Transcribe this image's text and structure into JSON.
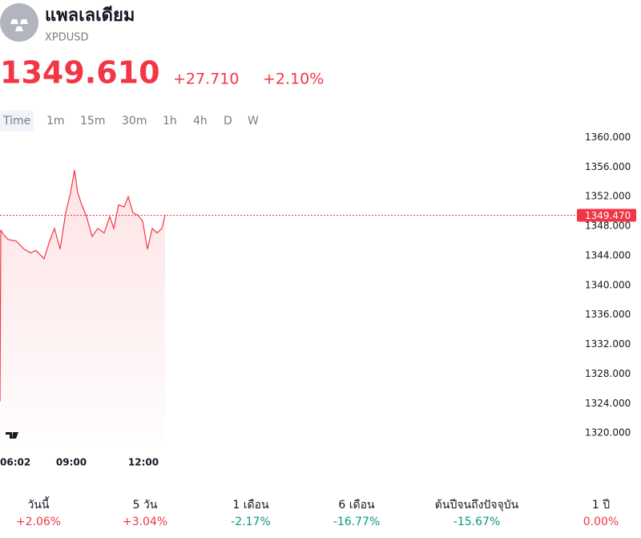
{
  "header": {
    "name": "แพลเลเดียม",
    "symbol": "XPDUSD",
    "price": "1349.610",
    "change": "+27.710",
    "change_pct": "+2.10%"
  },
  "timeframes": [
    "Time",
    "1m",
    "15m",
    "30m",
    "1h",
    "4h",
    "D",
    "W"
  ],
  "chart_data": {
    "type": "line",
    "color": "#f23645",
    "grid": false,
    "x": [
      "06:02",
      "06:04",
      "06:10",
      "06:22",
      "06:42",
      "07:02",
      "07:18",
      "07:32",
      "07:52",
      "08:06",
      "08:18",
      "08:32",
      "08:46",
      "08:58",
      "09:08",
      "09:16",
      "09:26",
      "09:38",
      "09:52",
      "10:06",
      "10:22",
      "10:36",
      "10:46",
      "10:58",
      "11:12",
      "11:22",
      "11:34",
      "11:46",
      "11:58",
      "12:10",
      "12:22",
      "12:34",
      "12:46",
      "12:54"
    ],
    "values": [
      1324.3,
      1347.5,
      1346.9,
      1346.2,
      1346.0,
      1344.9,
      1344.4,
      1344.7,
      1343.6,
      1346.0,
      1347.7,
      1344.9,
      1349.8,
      1352.5,
      1355.6,
      1352.5,
      1350.9,
      1349.3,
      1346.6,
      1347.7,
      1347.1,
      1349.3,
      1347.7,
      1350.9,
      1350.6,
      1352.0,
      1349.8,
      1349.5,
      1348.7,
      1344.9,
      1347.7,
      1347.1,
      1347.7,
      1349.47
    ],
    "xticks": [
      "06:02",
      "09:00",
      "12:00"
    ],
    "ylim": [
      1318.4,
      1360.7
    ],
    "yticks": [
      {
        "value": 1320,
        "label": "1320.000"
      },
      {
        "value": 1324,
        "label": "1324.000"
      },
      {
        "value": 1328,
        "label": "1328.000"
      },
      {
        "value": 1332,
        "label": "1332.000"
      },
      {
        "value": 1336,
        "label": "1336.000"
      },
      {
        "value": 1340,
        "label": "1340.000"
      },
      {
        "value": 1344,
        "label": "1344.000"
      },
      {
        "value": 1348,
        "label": "1348.000"
      },
      {
        "value": 1352,
        "label": "1352.000"
      },
      {
        "value": 1356,
        "label": "1356.000"
      },
      {
        "value": 1360,
        "label": "1360.000"
      }
    ],
    "last_price": {
      "value": 1349.47,
      "label": "1349.470"
    }
  },
  "performance": [
    {
      "label": "วันนี้",
      "value": "+2.06%",
      "color": "#f23645"
    },
    {
      "label": "5 วัน",
      "value": "+3.04%",
      "color": "#f23645"
    },
    {
      "label": "1 เดือน",
      "value": "-2.17%",
      "color": "#089981"
    },
    {
      "label": "6 เดือน",
      "value": "-16.77%",
      "color": "#089981"
    },
    {
      "label": "ต้นปีจนถึงปัจจุบัน",
      "value": "-15.67%",
      "color": "#089981"
    },
    {
      "label": "1 ปี",
      "value": "0.00%",
      "color": "#f23645"
    }
  ]
}
